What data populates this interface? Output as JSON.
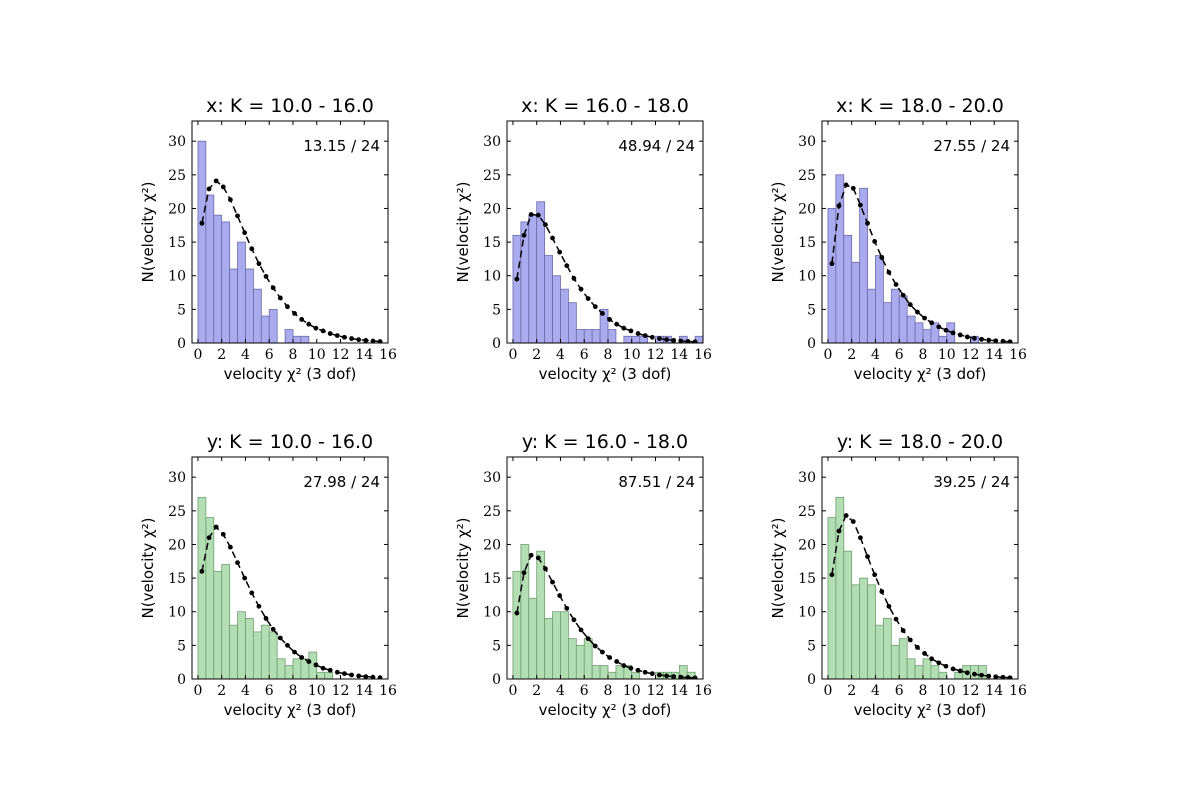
{
  "chart_data": [
    {
      "type": "bar",
      "title": "x: K = 10.0 - 16.0",
      "annotation": "13.15 / 24",
      "xlabel": "velocity χ² (3 dof)",
      "ylabel": "N(velocity χ²)",
      "xlim": [
        -0.5,
        16
      ],
      "ylim": [
        0,
        33
      ],
      "xticks": [
        0,
        2,
        4,
        6,
        8,
        10,
        12,
        14,
        16
      ],
      "yticks": [
        0,
        5,
        10,
        15,
        20,
        25,
        30
      ],
      "bin_width": 0.667,
      "bar_color": "#aaaaee",
      "bar_edge": "#6a6aaa",
      "hist": [
        30,
        22,
        19,
        18,
        11,
        15,
        11,
        8,
        4,
        5,
        0,
        2,
        1,
        1,
        0,
        0,
        0,
        0,
        0,
        0,
        0,
        0,
        0,
        0
      ],
      "model": [
        17.8,
        22.9,
        24.1,
        23.2,
        21.3,
        18.9,
        16.4,
        14.0,
        11.8,
        9.9,
        8.2,
        6.7,
        5.4,
        4.4,
        3.5,
        2.8,
        2.2,
        1.8,
        1.4,
        1.1,
        0.85,
        0.66,
        0.5,
        0.38,
        0.29,
        0.22
      ]
    },
    {
      "type": "bar",
      "title": "x: K = 16.0 - 18.0",
      "annotation": "48.94 / 24",
      "xlabel": "velocity χ² (3 dof)",
      "ylabel": "N(velocity χ²)",
      "xlim": [
        -0.5,
        16
      ],
      "ylim": [
        0,
        33
      ],
      "xticks": [
        0,
        2,
        4,
        6,
        8,
        10,
        12,
        14,
        16
      ],
      "yticks": [
        0,
        5,
        10,
        15,
        20,
        25,
        30
      ],
      "bin_width": 0.667,
      "bar_color": "#aaaaee",
      "bar_edge": "#6a6aaa",
      "hist": [
        16,
        18,
        19,
        21,
        13,
        10,
        8,
        6,
        2,
        2,
        2,
        5,
        2,
        0,
        1,
        1,
        1,
        0,
        1,
        1,
        0,
        1,
        0,
        1
      ],
      "model": [
        9.5,
        16.0,
        19.1,
        19.0,
        17.6,
        15.6,
        13.5,
        11.5,
        9.6,
        8.0,
        6.6,
        5.4,
        4.4,
        3.5,
        2.8,
        2.2,
        1.8,
        1.4,
        1.1,
        0.85,
        0.66,
        0.51,
        0.39,
        0.3,
        0.23,
        0.18
      ]
    },
    {
      "type": "bar",
      "title": "x: K = 18.0 - 20.0",
      "annotation": "27.55 / 24",
      "xlabel": "velocity χ² (3 dof)",
      "ylabel": "N(velocity χ²)",
      "xlim": [
        -0.5,
        16
      ],
      "ylim": [
        0,
        33
      ],
      "xticks": [
        0,
        2,
        4,
        6,
        8,
        10,
        12,
        14,
        16
      ],
      "yticks": [
        0,
        5,
        10,
        15,
        20,
        25,
        30
      ],
      "bin_width": 0.667,
      "bar_color": "#aaaaee",
      "bar_edge": "#6a6aaa",
      "hist": [
        20,
        25,
        16,
        12,
        23,
        8,
        13,
        6,
        8,
        7,
        4,
        3,
        2,
        3,
        1,
        3,
        0,
        0,
        1,
        0,
        0,
        0,
        0,
        0
      ],
      "model": [
        11.8,
        20.4,
        23.5,
        23.0,
        20.5,
        17.8,
        15.1,
        12.7,
        10.5,
        8.7,
        7.1,
        5.7,
        4.6,
        3.7,
        3.0,
        2.4,
        1.9,
        1.5,
        1.2,
        0.9,
        0.7,
        0.55,
        0.42,
        0.33,
        0.25,
        0.19
      ]
    },
    {
      "type": "bar",
      "title": "y: K = 10.0 - 16.0",
      "annotation": "27.98 / 24",
      "xlabel": "velocity χ² (3 dof)",
      "ylabel": "N(velocity χ²)",
      "xlim": [
        -0.5,
        16
      ],
      "ylim": [
        0,
        33
      ],
      "xticks": [
        0,
        2,
        4,
        6,
        8,
        10,
        12,
        14,
        16
      ],
      "yticks": [
        0,
        5,
        10,
        15,
        20,
        25,
        30
      ],
      "bin_width": 0.667,
      "bar_color": "#b3ddb3",
      "bar_edge": "#6f9f6f",
      "hist": [
        27,
        24,
        16,
        17,
        8,
        10,
        9,
        7,
        8,
        7,
        3,
        2,
        3,
        3,
        4,
        1,
        1,
        0,
        0,
        0,
        0,
        0,
        0,
        0
      ],
      "model": [
        16.0,
        21.0,
        22.6,
        21.5,
        19.6,
        17.3,
        15.0,
        12.8,
        10.8,
        9.0,
        7.4,
        6.1,
        5.0,
        4.0,
        3.2,
        2.6,
        2.1,
        1.6,
        1.3,
        1.0,
        0.8,
        0.6,
        0.46,
        0.35,
        0.27,
        0.2
      ]
    },
    {
      "type": "bar",
      "title": "y: K = 16.0 - 18.0",
      "annotation": "87.51 / 24",
      "xlabel": "velocity χ² (3 dof)",
      "ylabel": "N(velocity χ²)",
      "xlim": [
        -0.5,
        16
      ],
      "ylim": [
        0,
        33
      ],
      "xticks": [
        0,
        2,
        4,
        6,
        8,
        10,
        12,
        14,
        16
      ],
      "yticks": [
        0,
        5,
        10,
        15,
        20,
        25,
        30
      ],
      "bin_width": 0.667,
      "bar_color": "#b3ddb3",
      "bar_edge": "#6f9f6f",
      "hist": [
        16,
        20,
        12,
        19,
        9,
        10,
        10,
        6,
        5,
        6,
        2,
        2,
        1,
        2,
        2,
        1,
        0,
        0,
        1,
        1,
        1,
        2,
        1,
        0
      ],
      "model": [
        9.8,
        15.8,
        18.4,
        18.0,
        16.4,
        14.4,
        12.4,
        10.5,
        8.8,
        7.3,
        6.0,
        4.9,
        4.0,
        3.2,
        2.6,
        2.0,
        1.6,
        1.3,
        1.0,
        0.8,
        0.6,
        0.47,
        0.36,
        0.28,
        0.21,
        0.16
      ]
    },
    {
      "type": "bar",
      "title": "y: K = 18.0 - 20.0",
      "annotation": "39.25 / 24",
      "xlabel": "velocity χ² (3 dof)",
      "ylabel": "N(velocity χ²)",
      "xlim": [
        -0.5,
        16
      ],
      "ylim": [
        0,
        33
      ],
      "xticks": [
        0,
        2,
        4,
        6,
        8,
        10,
        12,
        14,
        16
      ],
      "yticks": [
        0,
        5,
        10,
        15,
        20,
        25,
        30
      ],
      "bin_width": 0.667,
      "bar_color": "#b3ddb3",
      "bar_edge": "#6f9f6f",
      "hist": [
        24,
        27,
        19,
        14,
        15,
        14,
        8,
        9,
        5,
        6,
        3,
        2,
        3,
        2,
        1,
        0,
        1,
        2,
        2,
        2,
        0,
        0,
        0,
        0
      ],
      "model": [
        15.5,
        22.0,
        24.3,
        23.4,
        21.0,
        18.2,
        15.5,
        13.0,
        10.8,
        8.9,
        7.2,
        5.8,
        4.7,
        3.8,
        3.0,
        2.4,
        1.9,
        1.5,
        1.2,
        0.93,
        0.72,
        0.56,
        0.43,
        0.33,
        0.25,
        0.19
      ]
    }
  ]
}
